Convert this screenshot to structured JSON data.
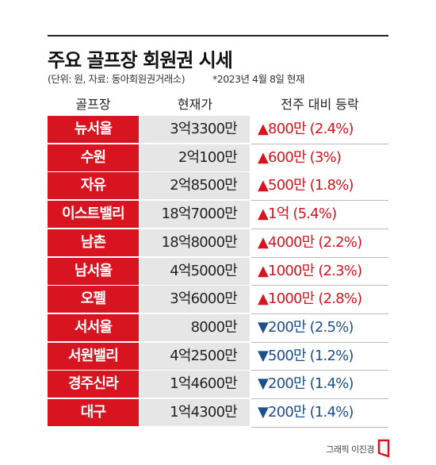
{
  "header": {
    "title": "주요 골프장 회원권 시세",
    "source": "(단위: 원, 자료: 동아회원권거래소)",
    "date": "*2023년 4월 8일 현재"
  },
  "table": {
    "columns": [
      "골프장",
      "현재가",
      "전주 대비 등락"
    ],
    "rows": [
      [
        "뉴서울",
        "3억3300만",
        "▲800만 (2.4%)"
      ],
      [
        "수원",
        "2억100만",
        "▲600만 (3%)"
      ],
      [
        "자유",
        "2억8500만",
        "▲500만 (1.8%)"
      ],
      [
        "이스트밸리",
        "18억7000만",
        "▲1억 (5.4%)"
      ],
      [
        "남촌",
        "18억8000만",
        "▲4000만 (2.2%)"
      ],
      [
        "남서울",
        "4억5000만",
        "▲1000만 (2.3%)"
      ],
      [
        "오펠",
        "3억6000만",
        "▲1000만 (2.8%)"
      ],
      [
        "서서울",
        "8000만",
        "▼200만 (2.5%)"
      ],
      [
        "서원밸리",
        "4억2500만",
        "▼500만 (1.2%)"
      ],
      [
        "경주신라",
        "1억4600만",
        "▼200만 (1.4%)"
      ],
      [
        "대구",
        "1억4300만",
        "▼200만 (1.4%)"
      ]
    ]
  },
  "footer": {
    "credit": "그래픽 이진경"
  }
}
